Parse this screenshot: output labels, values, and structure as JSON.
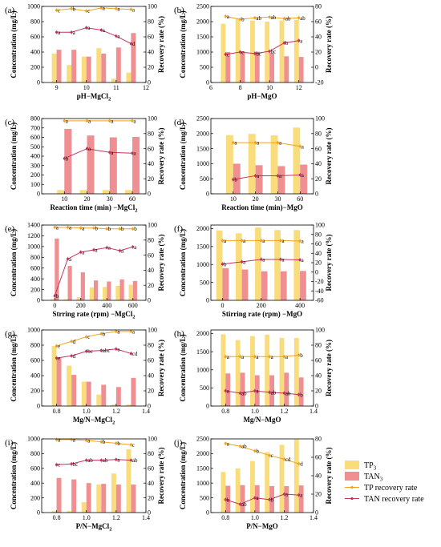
{
  "colors": {
    "tp3_bar": "#F9DC7C",
    "tan3_bar": "#F08F92",
    "tp_line": "#EFA21E",
    "tan_line": "#C3325A",
    "axis": "#000000"
  },
  "legend": {
    "position": "right-bottom",
    "items": [
      {
        "label": "TP",
        "sub": "3",
        "kind": "bar",
        "color": "#F9DC7C"
      },
      {
        "label": "TAN",
        "sub": "3",
        "kind": "bar",
        "color": "#F08F92"
      },
      {
        "label": "TP recovery rate",
        "sub": "",
        "kind": "line",
        "color": "#EFA21E"
      },
      {
        "label": "TAN recovery rate",
        "sub": "",
        "kind": "line",
        "color": "#C3325A"
      }
    ]
  },
  "chart_data": [
    {
      "panel": "(a)",
      "type": "bar",
      "xlabel": "pH−MgCl",
      "xlabel_sub": "2",
      "ylabel": "Concentration (mg/L)",
      "y2label": "Recovery rate (%)",
      "xlim": [
        8.5,
        12
      ],
      "xticks": [
        9,
        10,
        11,
        12
      ],
      "ylim": [
        0,
        1000
      ],
      "yticks": [
        0,
        200,
        400,
        600,
        800,
        1000
      ],
      "y2lim": [
        0,
        100
      ],
      "y2ticks": [
        0,
        20,
        40,
        60,
        80,
        100
      ],
      "categories": [
        9,
        9.5,
        10,
        10.5,
        11,
        11.5
      ],
      "series": [
        {
          "name": "TP",
          "sub": "3",
          "kind": "bar",
          "values": [
            380,
            230,
            340,
            450,
            50,
            130
          ]
        },
        {
          "name": "TAN",
          "sub": "3",
          "kind": "bar",
          "values": [
            430,
            430,
            340,
            380,
            460,
            650
          ]
        },
        {
          "name": "TP recovery rate",
          "kind": "line",
          "values": [
            95,
            97,
            94,
            98,
            97,
            96
          ]
        },
        {
          "name": "TAN recovery rate",
          "kind": "line",
          "values": [
            66,
            66,
            72,
            69,
            61,
            51
          ]
        }
      ],
      "tp_labels": [
        "c",
        "b",
        "c",
        "a",
        "a",
        "a"
      ],
      "tan_labels": [
        "a",
        "a",
        "a",
        "a",
        "a",
        "d"
      ]
    },
    {
      "panel": "(b)",
      "type": "bar",
      "xlabel": "pH−MgO",
      "xlabel_sub": "",
      "ylabel": "Concentration (mg/L)",
      "y2label": "Recovery rate (%)",
      "xlim": [
        6,
        13
      ],
      "xticks": [
        6,
        8,
        10,
        12
      ],
      "ylim": [
        0,
        2500
      ],
      "yticks": [
        0,
        500,
        1000,
        1500,
        2000,
        2500
      ],
      "y2lim": [
        -20,
        80
      ],
      "y2ticks": [
        -20,
        0,
        20,
        40,
        60,
        80
      ],
      "categories": [
        7,
        8,
        9,
        10,
        11,
        12
      ],
      "series": [
        {
          "name": "TP",
          "sub": "3",
          "kind": "bar",
          "values": [
            1930,
            2100,
            2040,
            2000,
            2040,
            2060
          ]
        },
        {
          "name": "TAN",
          "sub": "3",
          "kind": "bar",
          "values": [
            1000,
            1030,
            1010,
            970,
            860,
            840
          ]
        },
        {
          "name": "TP recovery rate",
          "kind": "line",
          "values": [
            67,
            63,
            65,
            66,
            64,
            65
          ]
        },
        {
          "name": "TAN recovery rate",
          "kind": "line",
          "values": [
            17,
            20,
            18,
            21,
            32,
            35
          ]
        }
      ],
      "tp_labels": [
        "a",
        "b",
        "ab",
        "ab",
        "ab",
        "ab"
      ],
      "tan_labels": [
        "c",
        "c",
        "bc",
        "bc",
        "b",
        "a"
      ]
    },
    {
      "panel": "(c)",
      "type": "bar",
      "xlabel": "Reaction time (min) −MgCl",
      "xlabel_sub": "2",
      "ylabel": "Concentration (mg/L)",
      "y2label": "Recovery rate (%)",
      "xlim": [
        0,
        4.6
      ],
      "xticks": [
        10,
        20,
        30,
        60
      ],
      "tick_pos": [
        1,
        2,
        3,
        4
      ],
      "ylim": [
        0,
        800
      ],
      "yticks": [
        0,
        100,
        200,
        300,
        400,
        500,
        600,
        700,
        800
      ],
      "y2lim": [
        0,
        100
      ],
      "y2ticks": [
        0,
        20,
        40,
        60,
        80,
        100
      ],
      "categories": [
        10,
        20,
        30,
        60
      ],
      "series": [
        {
          "name": "TP",
          "sub": "3",
          "kind": "bar",
          "values": [
            40,
            40,
            40,
            40
          ]
        },
        {
          "name": "TAN",
          "sub": "3",
          "kind": "bar",
          "values": [
            690,
            620,
            600,
            605
          ]
        },
        {
          "name": "TP recovery rate",
          "kind": "line",
          "values": [
            97,
            97,
            97,
            97
          ]
        },
        {
          "name": "TAN recovery rate",
          "kind": "line",
          "values": [
            47,
            60,
            55,
            54
          ]
        }
      ],
      "tp_labels": [
        "a",
        "a",
        "a",
        "a"
      ],
      "tan_labels": [
        "b",
        "a",
        "a",
        "a"
      ]
    },
    {
      "panel": "(d)",
      "type": "bar",
      "xlabel": "Reaction time (min)−MgO",
      "xlabel_sub": "",
      "ylabel": "Concentration (mg/L)",
      "y2label": "Recovery rate (%)",
      "xlim": [
        0,
        4.6
      ],
      "xticks": [
        10,
        20,
        30,
        60
      ],
      "tick_pos": [
        1,
        2,
        3,
        4
      ],
      "ylim": [
        0,
        2500
      ],
      "yticks": [
        0,
        500,
        1000,
        1500,
        2000,
        2500
      ],
      "y2lim": [
        0,
        100
      ],
      "y2ticks": [
        0,
        20,
        40,
        60,
        80,
        100
      ],
      "categories": [
        10,
        20,
        30,
        60
      ],
      "series": [
        {
          "name": "TP",
          "sub": "3",
          "kind": "bar",
          "values": [
            1950,
            1990,
            1940,
            2200
          ]
        },
        {
          "name": "TAN",
          "sub": "3",
          "kind": "bar",
          "values": [
            1000,
            950,
            920,
            970
          ]
        },
        {
          "name": "TP recovery rate",
          "kind": "line",
          "values": [
            68,
            68,
            68,
            63
          ]
        },
        {
          "name": "TAN recovery rate",
          "kind": "line",
          "values": [
            19,
            24,
            24,
            25
          ]
        }
      ],
      "tp_labels": [
        "a",
        "a",
        "a",
        "a"
      ],
      "tan_labels": [
        "b",
        "a",
        "a",
        "a"
      ]
    },
    {
      "panel": "(e)",
      "type": "bar",
      "xlabel": "Strring rate (rpm) −MgCl",
      "xlabel_sub": "2",
      "ylabel": "Concentration (mg/L)",
      "y2label": "Recovery rate (%)",
      "xlim": [
        -100,
        700
      ],
      "xticks": [
        0,
        200,
        400,
        600
      ],
      "ylim": [
        0,
        1400
      ],
      "yticks": [
        0,
        200,
        400,
        600,
        800,
        1000,
        1200,
        1400
      ],
      "y2lim": [
        0,
        100
      ],
      "y2ticks": [
        0,
        20,
        40,
        60,
        80,
        100
      ],
      "categories": [
        0,
        100,
        200,
        300,
        400,
        500,
        600
      ],
      "series": [
        {
          "name": "TP",
          "sub": "3",
          "kind": "bar",
          "values": [
            20,
            20,
            60,
            240,
            250,
            270,
            290
          ]
        },
        {
          "name": "TAN",
          "sub": "3",
          "kind": "bar",
          "values": [
            1150,
            640,
            520,
            370,
            350,
            390,
            360
          ]
        },
        {
          "name": "TP recovery rate",
          "kind": "line",
          "values": [
            97,
            97,
            96,
            96,
            95,
            95,
            95
          ]
        },
        {
          "name": "TAN recovery rate",
          "kind": "line",
          "values": [
            6,
            55,
            64,
            67,
            70,
            66,
            71
          ]
        }
      ],
      "tp_labels": [
        "a",
        "a",
        "a",
        "b",
        "b",
        "b",
        "b"
      ],
      "tan_labels": [
        "b",
        "a",
        "a",
        "a",
        "a",
        "a",
        "a"
      ]
    },
    {
      "panel": "(f)",
      "type": "bar",
      "xlabel": "Stirring rate (rpm) −MgO",
      "xlabel_sub": "",
      "ylabel": "Concentration (mg/L)",
      "y2label": "Recovery rate (%)",
      "xlim": [
        -60,
        470
      ],
      "xticks": [
        0,
        200,
        400
      ],
      "ylim": [
        0,
        2100
      ],
      "yticks": [
        0,
        500,
        1000,
        1500,
        2000
      ],
      "y2lim": [
        -60,
        100
      ],
      "y2ticks": [
        -60,
        -40,
        -20,
        0,
        20,
        40,
        60,
        80,
        100
      ],
      "categories": [
        0,
        100,
        200,
        300,
        400
      ],
      "series": [
        {
          "name": "TP",
          "sub": "3",
          "kind": "bar",
          "values": [
            1950,
            1870,
            2030,
            1960,
            1960
          ]
        },
        {
          "name": "TAN",
          "sub": "3",
          "kind": "bar",
          "values": [
            900,
            860,
            810,
            810,
            820
          ]
        },
        {
          "name": "TP recovery rate",
          "kind": "line",
          "values": [
            67,
            67,
            67,
            67,
            66
          ]
        },
        {
          "name": "TAN recovery rate",
          "kind": "line",
          "values": [
            17,
            22,
            27,
            27,
            26
          ]
        }
      ],
      "tp_labels": [
        "a",
        "a",
        "a",
        "a",
        "a"
      ],
      "tan_labels": [
        "b",
        "a",
        "a",
        "a",
        "a"
      ]
    },
    {
      "panel": "(g)",
      "type": "bar",
      "xlabel": "Mg/N−MgCl",
      "xlabel_sub": "2",
      "ylabel": "Concentration (mg/L)",
      "y2label": "Recovery rate (%)",
      "xlim": [
        0.7,
        1.4
      ],
      "xticks": [
        0.8,
        1.0,
        1.2,
        1.4
      ],
      "ylim": [
        0,
        1000
      ],
      "yticks": [
        0,
        200,
        400,
        600,
        800,
        1000
      ],
      "y2lim": [
        0,
        100
      ],
      "y2ticks": [
        0,
        20,
        40,
        60,
        80,
        100
      ],
      "categories": [
        0.8,
        0.9,
        1.0,
        1.1,
        1.2,
        1.3
      ],
      "series": [
        {
          "name": "TP",
          "sub": "3",
          "kind": "bar",
          "values": [
            790,
            530,
            320,
            150,
            20,
            20
          ]
        },
        {
          "name": "TAN",
          "sub": "3",
          "kind": "bar",
          "values": [
            630,
            410,
            320,
            280,
            250,
            370
          ]
        },
        {
          "name": "TP recovery rate",
          "kind": "line",
          "values": [
            79,
            85,
            91,
            95,
            98,
            98
          ]
        },
        {
          "name": "TAN recovery rate",
          "kind": "line",
          "values": [
            63,
            66,
            72,
            73,
            75,
            69
          ]
        }
      ],
      "tp_labels": [
        "e",
        "d",
        "c",
        "b",
        "a",
        "a"
      ],
      "tan_labels": [
        "e",
        "d",
        "bc",
        "abc",
        "a",
        "cd"
      ]
    },
    {
      "panel": "(h)",
      "type": "bar",
      "xlabel": "Mg/N−MgO",
      "xlabel_sub": "",
      "ylabel": "Concentration (mg/L)",
      "y2label": "Recovery rate (%)",
      "xlim": [
        0.7,
        1.4
      ],
      "xticks": [
        0.8,
        1.0,
        1.2,
        1.4
      ],
      "ylim": [
        0,
        2100
      ],
      "yticks": [
        0,
        500,
        1000,
        1500,
        2000
      ],
      "y2lim": [
        0,
        100
      ],
      "y2ticks": [
        0,
        20,
        40,
        60,
        80,
        100
      ],
      "categories": [
        0.8,
        0.9,
        1.0,
        1.1,
        1.2,
        1.3
      ],
      "series": [
        {
          "name": "TP",
          "sub": "3",
          "kind": "bar",
          "values": [
            1980,
            1820,
            1930,
            1970,
            1880,
            1880
          ]
        },
        {
          "name": "TAN",
          "sub": "3",
          "kind": "bar",
          "values": [
            900,
            920,
            850,
            850,
            920,
            790
          ]
        },
        {
          "name": "TP recovery rate",
          "kind": "line",
          "values": [
            65,
            65,
            65,
            65,
            65,
            67
          ]
        },
        {
          "name": "TAN recovery rate",
          "kind": "line",
          "values": [
            20,
            17,
            20,
            18,
            17,
            15
          ]
        }
      ],
      "tp_labels": [
        "a",
        "a",
        "a",
        "a",
        "a",
        "b"
      ],
      "tan_labels": [
        "a",
        "ab",
        "a",
        "ab",
        "ab",
        "b"
      ]
    },
    {
      "panel": "(i)",
      "type": "bar",
      "xlabel": "P/N−MgCl",
      "xlabel_sub": "2",
      "ylabel": "Concentration (mg/L)",
      "y2label": "Recovery rate (%)",
      "xlim": [
        0.7,
        1.4
      ],
      "xticks": [
        0.8,
        1.0,
        1.2,
        1.4
      ],
      "ylim": [
        0,
        1000
      ],
      "yticks": [
        0,
        200,
        400,
        600,
        800,
        1000
      ],
      "y2lim": [
        0,
        100
      ],
      "y2ticks": [
        0,
        20,
        40,
        60,
        80,
        100
      ],
      "categories": [
        0.8,
        0.9,
        1.0,
        1.1,
        1.2,
        1.3
      ],
      "series": [
        {
          "name": "TP",
          "sub": "3",
          "kind": "bar",
          "values": [
            20,
            20,
            140,
            380,
            530,
            860
          ]
        },
        {
          "name": "TAN",
          "sub": "3",
          "kind": "bar",
          "values": [
            470,
            450,
            400,
            390,
            380,
            380
          ]
        },
        {
          "name": "TP recovery rate",
          "kind": "line",
          "values": [
            99,
            99,
            98,
            96,
            94,
            92
          ]
        },
        {
          "name": "TAN recovery rate",
          "kind": "line",
          "values": [
            65,
            66,
            71,
            71,
            72,
            71
          ]
        }
      ],
      "tp_labels": [
        "a",
        "a",
        "a",
        "b",
        "b",
        "c"
      ],
      "tan_labels": [
        "c",
        "bc",
        "ab",
        "ab",
        "a",
        "ab"
      ]
    },
    {
      "panel": "(j)",
      "type": "bar",
      "xlabel": "P/N−MgO",
      "xlabel_sub": "",
      "ylabel": "Concentration (mg/L)",
      "y2label": "Recovery rate (%)",
      "xlim": [
        0.7,
        1.4
      ],
      "xticks": [
        0.8,
        1.0,
        1.2,
        1.4
      ],
      "ylim": [
        0,
        2500
      ],
      "yticks": [
        0,
        500,
        1000,
        1500,
        2000,
        2500
      ],
      "y2lim": [
        0,
        80
      ],
      "y2ticks": [
        0,
        20,
        40,
        60,
        80
      ],
      "categories": [
        0.8,
        0.9,
        1.0,
        1.1,
        1.2,
        1.3
      ],
      "series": [
        {
          "name": "TP",
          "sub": "3",
          "kind": "bar",
          "values": [
            1380,
            1500,
            1750,
            2050,
            2300,
            2480
          ]
        },
        {
          "name": "TAN",
          "sub": "3",
          "kind": "bar",
          "values": [
            910,
            930,
            930,
            900,
            900,
            920
          ]
        },
        {
          "name": "TP recovery rate",
          "kind": "line",
          "values": [
            75,
            72,
            67,
            62,
            58,
            53
          ]
        },
        {
          "name": "TAN recovery rate",
          "kind": "line",
          "values": [
            14,
            9,
            16,
            14,
            20,
            19
          ]
        }
      ],
      "tp_labels": [
        "a",
        "ab",
        "b",
        "c",
        "cd",
        "d"
      ],
      "tan_labels": [
        "b",
        "ab",
        "a",
        "b",
        "a",
        "a"
      ]
    }
  ]
}
